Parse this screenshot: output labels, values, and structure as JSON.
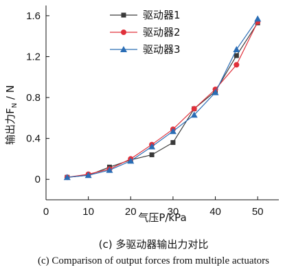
{
  "chart_data": {
    "type": "line",
    "xlabel": "气压P/kPa",
    "ylabel": "输出力F",
    "ylabel_sub": "N",
    "ylabel_unit": " / N",
    "xlim": [
      0,
      55
    ],
    "ylim": [
      -0.2,
      1.7
    ],
    "xticks": [
      0,
      10,
      20,
      30,
      40,
      50
    ],
    "yticks": [
      0,
      0.4,
      0.8,
      1.2,
      1.6
    ],
    "ytick_labels": [
      "0",
      "0.4",
      "0.8",
      "1.2",
      "1.6"
    ],
    "legend_position": "top-center",
    "grid": false,
    "x": [
      5,
      10,
      15,
      20,
      25,
      30,
      35,
      40,
      45,
      50
    ],
    "series": [
      {
        "name": "驱动器1",
        "color": "#3a3a3a",
        "marker": "square",
        "values": [
          0.02,
          0.04,
          0.12,
          0.19,
          0.24,
          0.36,
          0.69,
          0.86,
          1.21,
          1.53
        ]
      },
      {
        "name": "驱动器2",
        "color": "#e0303a",
        "marker": "circle",
        "values": [
          0.02,
          0.05,
          0.1,
          0.2,
          0.34,
          0.49,
          0.69,
          0.88,
          1.12,
          1.54
        ]
      },
      {
        "name": "驱动器3",
        "color": "#2a6db5",
        "marker": "triangle",
        "values": [
          0.02,
          0.04,
          0.09,
          0.18,
          0.32,
          0.47,
          0.63,
          0.85,
          1.27,
          1.57
        ]
      }
    ]
  },
  "captions": {
    "cn": "(c) 多驱动器输出力对比",
    "en": "(c) Comparison of output forces from multiple actuators"
  }
}
